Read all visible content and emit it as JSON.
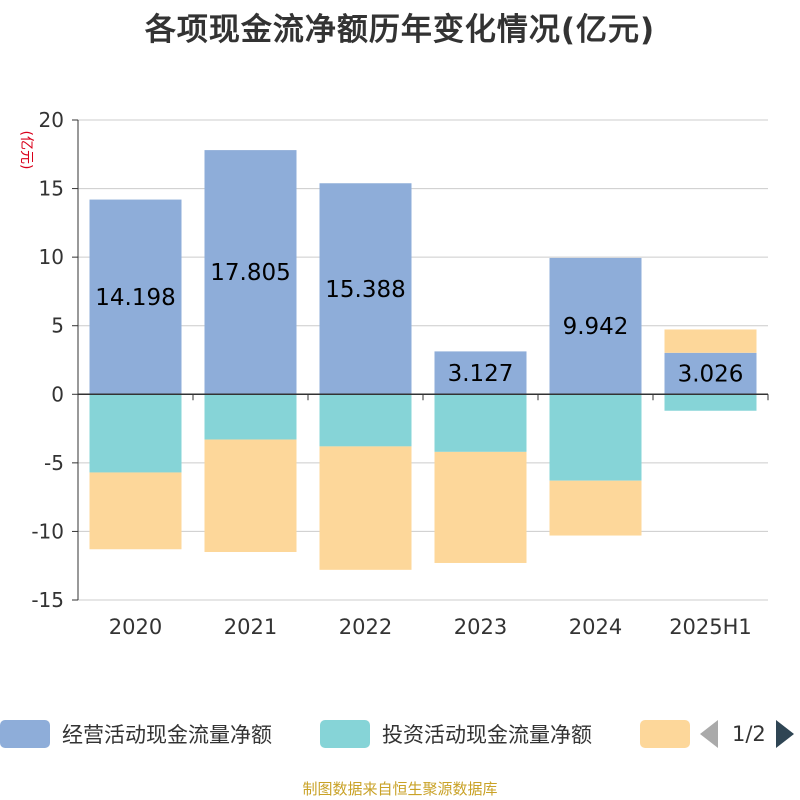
{
  "title": "各项现金流净额历年变化情况(亿元)",
  "source": "制图数据来自恒生聚源数据库",
  "legend_page": "1/2",
  "colors": {
    "operating": "#8eadd9",
    "investing": "#86d4d7",
    "financing": "#fdd79a",
    "axis": "#333333",
    "grid": "#cccccc",
    "unit": "#d9001b"
  },
  "chart_data": {
    "type": "bar",
    "stacked": true,
    "unit_label": "(亿元)",
    "categories": [
      "2020",
      "2021",
      "2022",
      "2023",
      "2024",
      "2025H1"
    ],
    "ylim": [
      -15,
      20
    ],
    "yticks": [
      -15,
      -10,
      -5,
      0,
      5,
      10,
      15,
      20
    ],
    "grid": true,
    "legend_position": "bottom",
    "series": [
      {
        "name": "经营活动现金流量净额",
        "color_key": "operating",
        "values": [
          14.198,
          17.805,
          15.388,
          3.127,
          9.942,
          3.026
        ],
        "labels": [
          "14.198",
          "17.805",
          "15.388",
          "3.127",
          "9.942",
          "3.026"
        ]
      },
      {
        "name": "投资活动现金流量净额",
        "color_key": "investing",
        "values": [
          -5.7,
          -3.3,
          -3.8,
          -4.2,
          -6.3,
          -1.2
        ]
      },
      {
        "name": "",
        "color_key": "financing",
        "values": [
          -5.6,
          -8.2,
          -9.0,
          -8.1,
          -4.0,
          1.7
        ]
      }
    ]
  }
}
